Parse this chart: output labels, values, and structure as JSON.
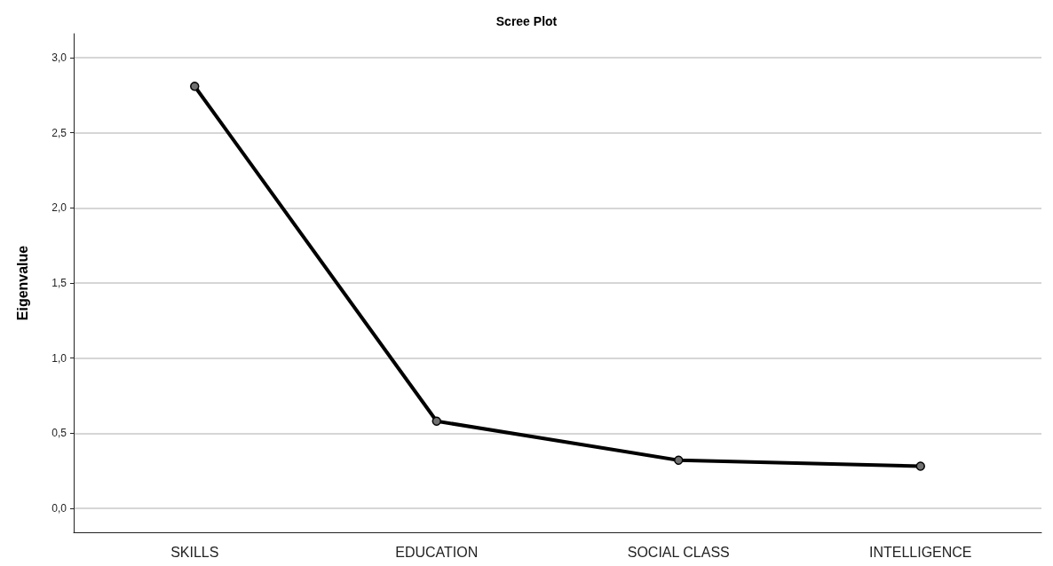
{
  "chart_data": {
    "type": "line",
    "title": "Scree Plot",
    "ylabel": "Eigenvalue",
    "categories": [
      "SKILLS",
      "EDUCATION",
      "SOCIAL CLASS",
      "INTELLIGENCE"
    ],
    "series": [
      {
        "color": "#000000",
        "values": [
          2.81,
          0.58,
          0.32,
          0.28
        ]
      }
    ],
    "ylim": [
      -0.16,
      3.16
    ],
    "yticks": [
      {
        "value": 0,
        "label": "0,0"
      },
      {
        "value": 0.5,
        "label": "0,5"
      },
      {
        "value": 1,
        "label": "1,0"
      },
      {
        "value": 1.5,
        "label": "1,5"
      },
      {
        "value": 2,
        "label": "2,0"
      },
      {
        "value": 2.5,
        "label": "2,5"
      },
      {
        "value": 3,
        "label": "3,0"
      }
    ],
    "grid": "y",
    "marker": "circle",
    "line_style": "solid"
  }
}
